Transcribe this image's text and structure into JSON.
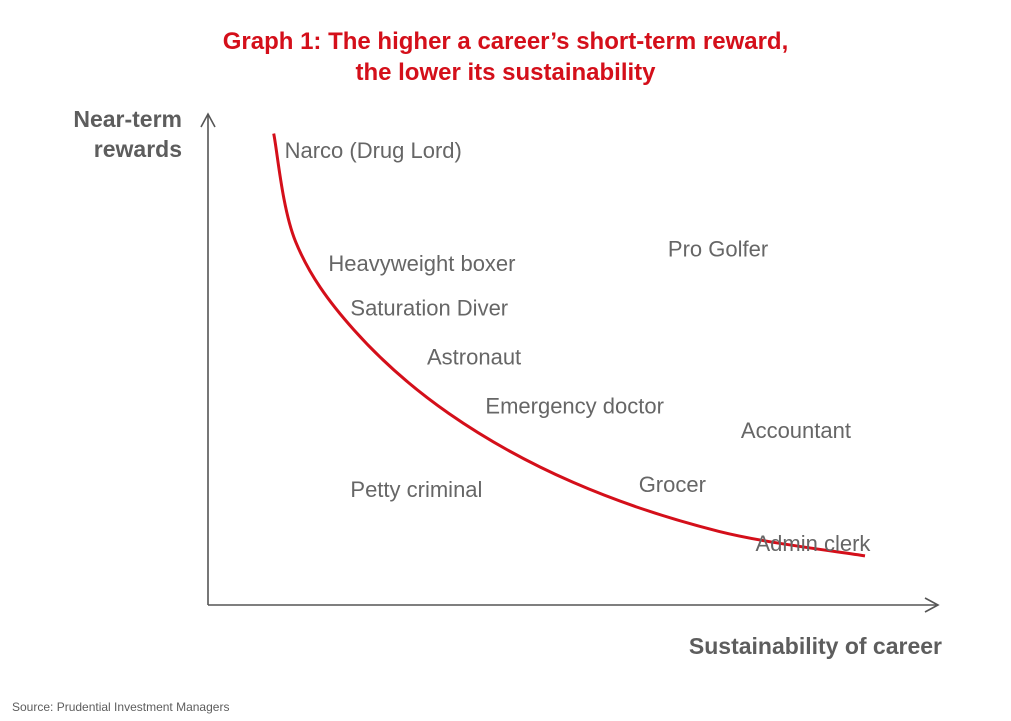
{
  "chart_data": {
    "type": "scatter",
    "title": [
      "Graph 1: The higher a career’s short-term reward,",
      "the lower its sustainability"
    ],
    "ylabel": [
      "Near-term",
      "rewards"
    ],
    "xlabel": "Sustainability of career",
    "source": "Source: Prudential Investment Managers",
    "xlim": [
      0,
      100
    ],
    "ylim": [
      0,
      100
    ],
    "grid": false,
    "curve_color": "#d40f1a",
    "title_color": "#d40f1a",
    "curve": [
      {
        "x": 9,
        "y": 96
      },
      {
        "x": 12,
        "y": 74
      },
      {
        "x": 20,
        "y": 56
      },
      {
        "x": 33,
        "y": 39
      },
      {
        "x": 50,
        "y": 25
      },
      {
        "x": 70,
        "y": 15
      },
      {
        "x": 90,
        "y": 10
      }
    ],
    "points": [
      {
        "label": "Narco (Drug Lord)",
        "x": 10.5,
        "y": 91
      },
      {
        "label": "Heavyweight boxer",
        "x": 16.5,
        "y": 68
      },
      {
        "label": "Pro Golfer",
        "x": 63,
        "y": 71
      },
      {
        "label": "Saturation Diver",
        "x": 19.5,
        "y": 59
      },
      {
        "label": "Astronaut",
        "x": 30,
        "y": 49
      },
      {
        "label": "Emergency doctor",
        "x": 38,
        "y": 39
      },
      {
        "label": "Accountant",
        "x": 73,
        "y": 34
      },
      {
        "label": "Petty criminal",
        "x": 19.5,
        "y": 22
      },
      {
        "label": "Grocer",
        "x": 59,
        "y": 23
      },
      {
        "label": "Admin clerk",
        "x": 75,
        "y": 11
      }
    ]
  }
}
